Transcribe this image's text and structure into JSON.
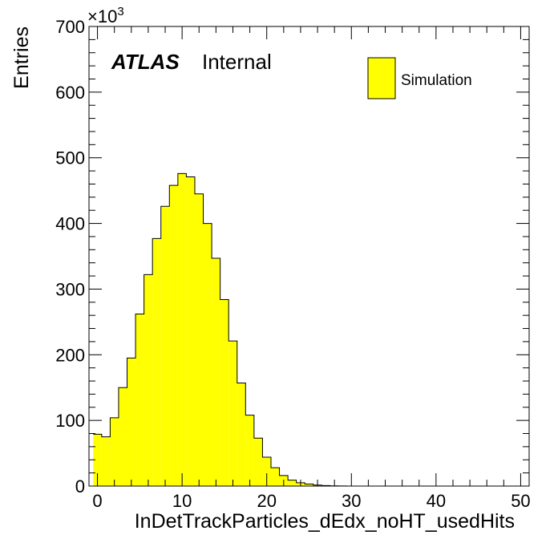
{
  "chart_data": {
    "type": "bar",
    "title": "",
    "xlabel": "InDetTrackParticles_dEdx_noHT_usedHits",
    "ylabel": "Entries",
    "y_multiplier_label": "×10",
    "y_multiplier_exponent": "3",
    "xlim": [
      -1,
      51
    ],
    "ylim": [
      0,
      700
    ],
    "x_ticks": [
      0,
      10,
      20,
      30,
      40,
      50
    ],
    "y_ticks": [
      0,
      100,
      200,
      300,
      400,
      500,
      600,
      700
    ],
    "x_tick_labels": [
      "0",
      "10",
      "20",
      "30",
      "40",
      "50"
    ],
    "y_tick_labels": [
      "0",
      "100",
      "200",
      "300",
      "400",
      "500",
      "600",
      "700"
    ],
    "bin_width": 1,
    "bin_edges_start": -0.5,
    "series": [
      {
        "name": "Simulation",
        "color": "#ffff00",
        "values": [
          79,
          75,
          104,
          150,
          195,
          262,
          322,
          377,
          426,
          458,
          476,
          471,
          445,
          400,
          347,
          284,
          221,
          157,
          108,
          73,
          44,
          28,
          16,
          9,
          5,
          3,
          1.5,
          0.8,
          0.3,
          0.1,
          0.05,
          0,
          0,
          0,
          0,
          0,
          0,
          0,
          0,
          0,
          0,
          0,
          0,
          0,
          0,
          0,
          0,
          0,
          0,
          0,
          0,
          0
        ]
      }
    ],
    "legend": {
      "position": "top-right",
      "entries": [
        "Simulation"
      ]
    },
    "annotations": {
      "atlas": "ATLAS",
      "status": "Internal"
    },
    "grid": false
  }
}
